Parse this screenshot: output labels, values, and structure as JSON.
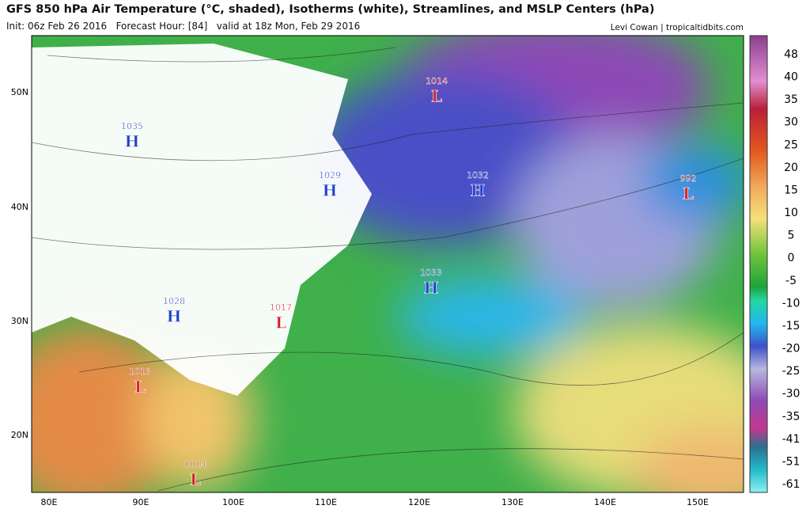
{
  "header": {
    "title": "GFS 850 hPa Air Temperature (°C, shaded), Isotherms (white), Streamlines, and MSLP Centers (hPa)",
    "init": "Init: 06z Feb 26 2016",
    "forecast_hour": "Forecast Hour: [84]",
    "valid": "valid at 18z Mon, Feb 29 2016",
    "credit": "Levi Cowan | tropicaltidbits.com"
  },
  "map": {
    "lat_labels": [
      "50N",
      "40N",
      "30N",
      "20N"
    ],
    "lon_labels": [
      "80E",
      "90E",
      "100E",
      "110E",
      "120E",
      "130E",
      "140E",
      "150E"
    ],
    "pressure_centers": [
      {
        "value": 1014,
        "type": "L"
      },
      {
        "value": 1035,
        "type": "H"
      },
      {
        "value": 1029,
        "type": "H"
      },
      {
        "value": 1032,
        "type": "H"
      },
      {
        "value": 992,
        "type": "L"
      },
      {
        "value": 1033,
        "type": "H"
      },
      {
        "value": 1028,
        "type": "H"
      },
      {
        "value": 1017,
        "type": "L"
      },
      {
        "value": 1013,
        "type": "L"
      },
      {
        "value": 1014,
        "type": "L"
      }
    ]
  },
  "colorbar": {
    "labels": [
      48,
      40,
      35,
      30,
      25,
      20,
      15,
      10,
      5,
      0,
      -5,
      -10,
      -15,
      -20,
      -25,
      -30,
      -35,
      -41,
      -51,
      -61
    ]
  }
}
